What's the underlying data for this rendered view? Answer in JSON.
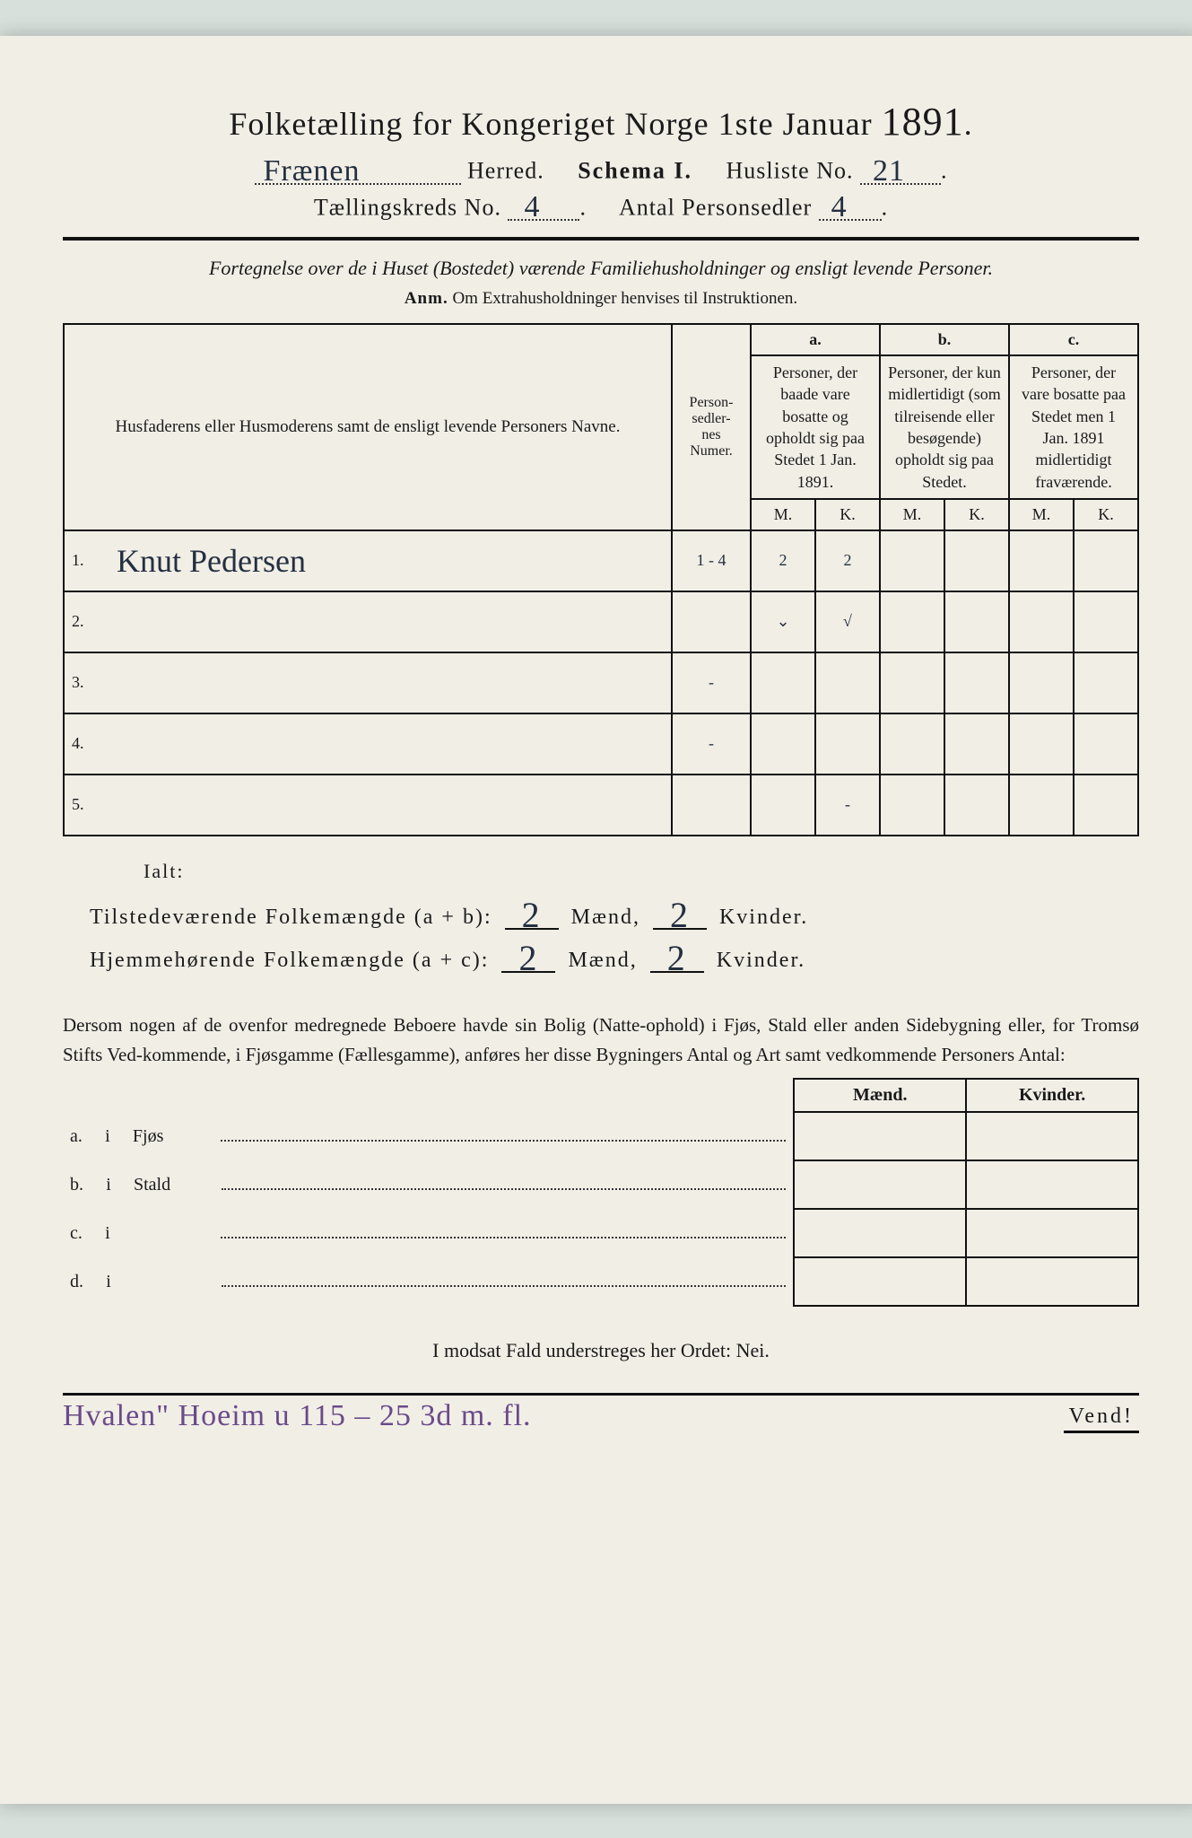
{
  "colors": {
    "paper": "#f1eee6",
    "bg": "#d8e0dc",
    "ink": "#1a1a1a",
    "hand": "#243040",
    "purple": "#6a4a8a"
  },
  "title": {
    "pre": "Folketælling for Kongeriget Norge 1ste Januar ",
    "year": "1891",
    "suffix": "."
  },
  "header": {
    "herred_hand": "Frænen",
    "herred_label": " Herred.",
    "schema": "Schema I.",
    "husliste_label": "Husliste No.",
    "husliste_hand": "21",
    "kreds_label": "Tællingskreds No.",
    "kreds_hand": "4",
    "antal_label": "Antal Personsedler",
    "antal_hand": "4"
  },
  "subtitle": {
    "line": "Fortegnelse over de i Huset (Bostedet) værende Familiehusholdninger og ensligt levende Personer.",
    "anm_b": "Anm.",
    "anm_rest": " Om Extrahusholdninger henvises til Instruktionen."
  },
  "table": {
    "col_name": "Husfaderens eller Husmoderens samt de ensligt levende Personers Navne.",
    "col_num": "Person-\nsedler-\nnes\nNumer.",
    "a": "a.",
    "a_txt": "Personer, der baade vare bosatte og opholdt sig paa Stedet 1 Jan. 1891.",
    "b": "b.",
    "b_txt": "Personer, der kun midlertidigt (som tilreisende eller besøgende) opholdt sig paa Stedet.",
    "c": "c.",
    "c_txt": "Personer, der vare bosatte paa Stedet men 1 Jan. 1891 midlertidigt fraværende.",
    "M": "M.",
    "K": "K.",
    "rows": [
      {
        "idx": "1.",
        "name": "Knut Pedersen",
        "num": "1 - 4",
        "aM": "2",
        "aK": "2",
        "bM": "",
        "bK": "",
        "cM": "",
        "cK": ""
      },
      {
        "idx": "2.",
        "name": "",
        "num": "",
        "aM": "⌄",
        "aK": "√",
        "bM": "",
        "bK": "",
        "cM": "",
        "cK": ""
      },
      {
        "idx": "3.",
        "name": "",
        "num": "-",
        "aM": "",
        "aK": "",
        "bM": "",
        "bK": "",
        "cM": "",
        "cK": ""
      },
      {
        "idx": "4.",
        "name": "",
        "num": "-",
        "aM": "",
        "aK": "",
        "bM": "",
        "bK": "",
        "cM": "",
        "cK": ""
      },
      {
        "idx": "5.",
        "name": "",
        "num": "",
        "aM": "",
        "aK": "-",
        "bM": "",
        "bK": "",
        "cM": "",
        "cK": ""
      }
    ]
  },
  "sums": {
    "ialt": "Ialt:",
    "line1_pre": "Tilstedeværende Folkemængde (a + b):",
    "line2_pre": "Hjemmehørende Folkemængde (a + c):",
    "mand": "Mænd,",
    "kvinder": "Kvinder.",
    "v1m": "2",
    "v1k": "2",
    "v2m": "2",
    "v2k": "2"
  },
  "para": "Dersom nogen af de ovenfor medregnede Beboere havde sin Bolig (Natte-ophold) i Fjøs, Stald eller anden Sidebygning eller, for Tromsø Stifts Ved-kommende, i Fjøsgamme (Fællesgamme), anføres her disse Bygningers Antal og Art samt vedkommende Personers Antal:",
  "outb": {
    "head_m": "Mænd.",
    "head_k": "Kvinder.",
    "rows": [
      {
        "k": "a.",
        "i": "i",
        "label": "Fjøs"
      },
      {
        "k": "b.",
        "i": "i",
        "label": "Stald"
      },
      {
        "k": "c.",
        "i": "i",
        "label": ""
      },
      {
        "k": "d.",
        "i": "i",
        "label": ""
      }
    ]
  },
  "nei": "I modsat Fald understreges her Ordet: Nei.",
  "footer": {
    "hand": "Hvalen\"  Hoeim   u  115 – 25 3d   m. fl.",
    "vend": "Vend!"
  }
}
